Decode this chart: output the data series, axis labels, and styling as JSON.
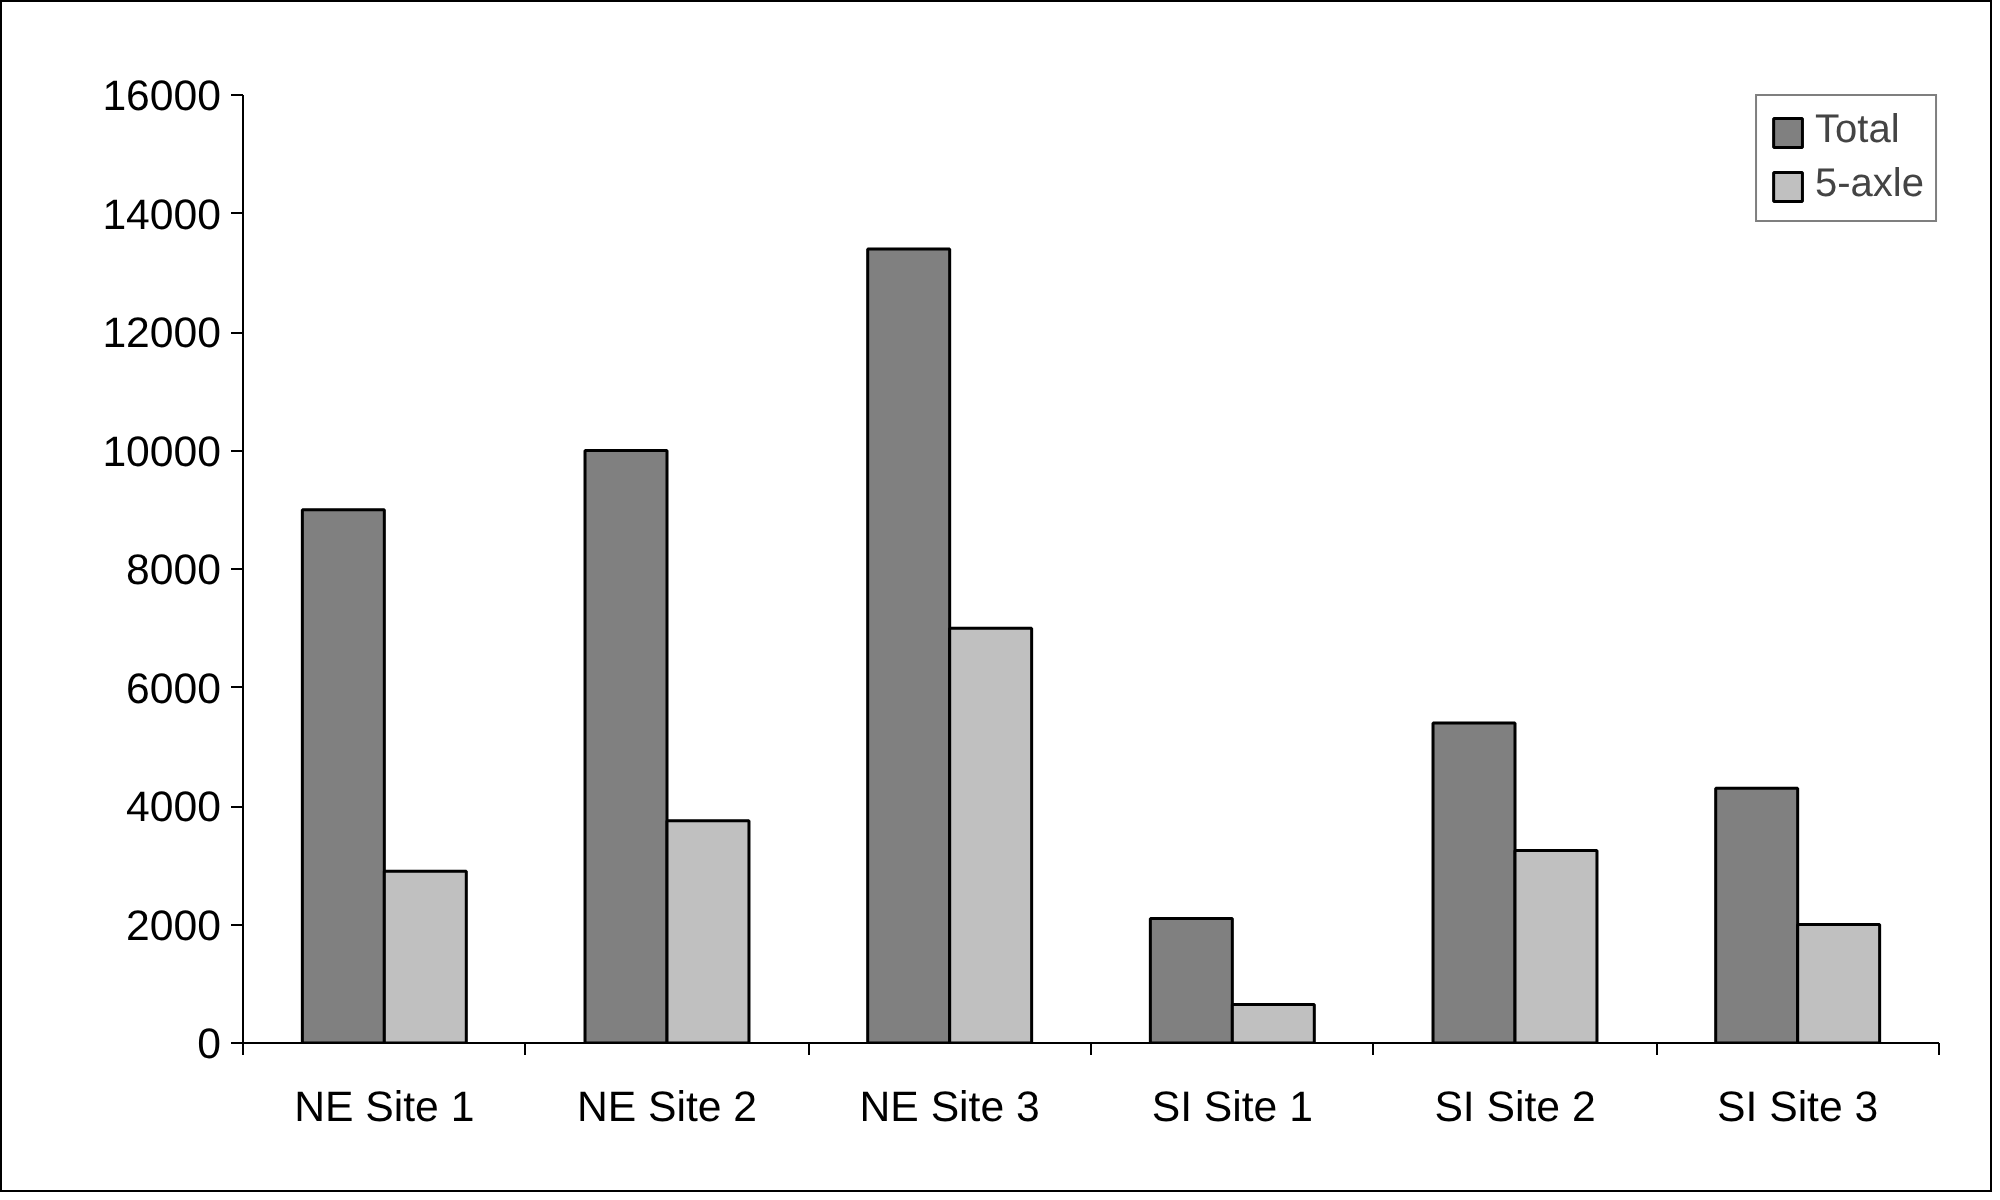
{
  "chart_data": {
    "type": "bar",
    "categories": [
      "NE Site 1",
      "NE Site 2",
      "NE Site 3",
      "SI Site 1",
      "SI Site 2",
      "SI Site 3"
    ],
    "series": [
      {
        "name": "Total",
        "color": "#808080",
        "values": [
          9000,
          10000,
          13400,
          2100,
          5400,
          4300
        ]
      },
      {
        "name": "5-axle",
        "color": "#c0c0c0",
        "values": [
          2900,
          3750,
          7000,
          650,
          3250,
          2000
        ]
      }
    ],
    "ylim": [
      0,
      16000
    ],
    "yticks": [
      0,
      2000,
      4000,
      6000,
      8000,
      10000,
      12000,
      14000,
      16000
    ],
    "grid": false,
    "legend": "top right"
  }
}
